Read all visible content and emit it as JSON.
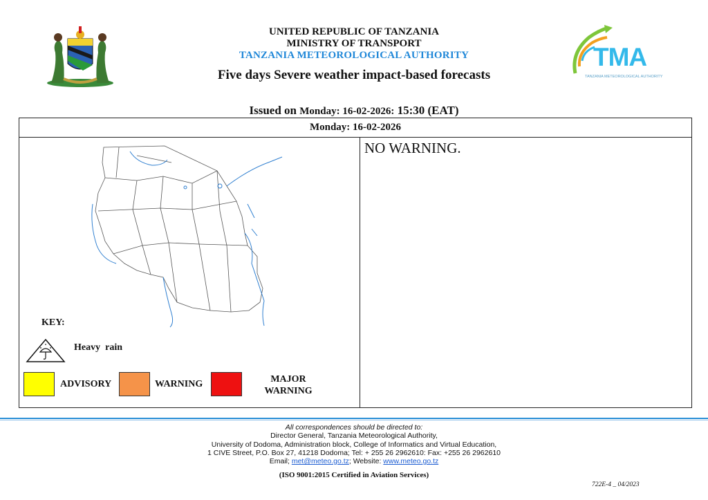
{
  "header": {
    "line1": "UNITED REPUBLIC OF TANZANIA",
    "line2": "MINISTRY OF TRANSPORT",
    "line3": "TANZANIA METEOROLOGICAL AUTHORITY",
    "title": "Five days Severe weather impact-based forecasts"
  },
  "logos": {
    "coat_of_arms": "tanzania-coat-of-arms",
    "tma_text": "TMA",
    "tma_subtitle": "TANZANIA METEOROLOGICAL AUTHORITY"
  },
  "issued": {
    "prefix": "Issued on",
    "date": "Monday: 16-02-2026:",
    "time": "15:30 (EAT)"
  },
  "forecast": {
    "day": "Monday: 16-02-2026",
    "status": "NO WARNING."
  },
  "key": {
    "title": "KEY:",
    "heavy_rain": "Heavy  rain",
    "advisory": "ADVISORY",
    "warning": "WARNING",
    "major_line1": "MAJOR",
    "major_line2": "WARNING",
    "colors": {
      "advisory": "#ffff00",
      "warning": "#f59349",
      "major": "#ee1111"
    }
  },
  "footer": {
    "line1": "All correspondences should be directed to:",
    "line2": "Director General, Tanzania Meteorological Authority,",
    "line3": "University of Dodoma, Administration block, College of Informatics and Virtual Education,",
    "line4": "1 CIVE Street, P.O. Box 27, 41218 Dodoma; Tel: + 255 26 2962610: Fax: +255 26 2962610",
    "email_label": "Email; ",
    "email": "met@meteo.go.tz",
    "website_label": "; Website: ",
    "website": "www.meteo.go.tz",
    "iso": "(ISO 9001:2015 Certified in Aviation Services)",
    "doc_code": "722E-4 _ 04/2023"
  },
  "accent_color": "#2a8fd6"
}
